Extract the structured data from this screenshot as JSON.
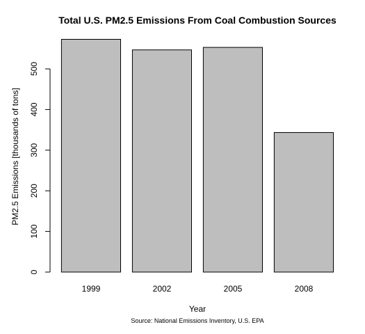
{
  "chart_data": {
    "type": "bar",
    "title": "Total U.S. PM2.5 Emissions From Coal Combustion Sources",
    "xlabel": "Year",
    "ylabel": "PM2.5 Emissions [thousands of tons]",
    "caption": "Source: National Emissions Inventory, U.S. EPA",
    "categories": [
      "1999",
      "2002",
      "2005",
      "2008"
    ],
    "values": [
      572.8,
      546.8,
      552.9,
      343.4
    ],
    "ylim": [
      0,
      580
    ],
    "yticks": [
      "0",
      "100",
      "200",
      "300",
      "400",
      "500"
    ],
    "grid": false,
    "bar_color": "#bebebe",
    "bar_border_color": "#000000"
  }
}
